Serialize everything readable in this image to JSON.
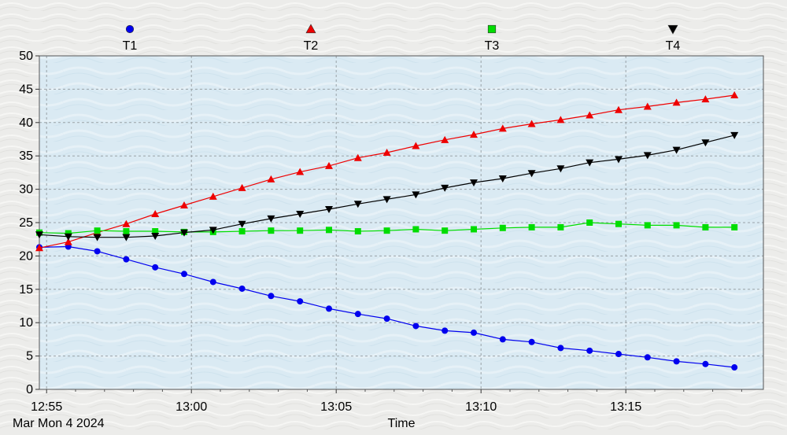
{
  "chart_data": {
    "type": "line",
    "title": "",
    "xlabel": "Time",
    "ylabel": "",
    "date_label": "Mar Mon 4 2024",
    "x_ticks": [
      "12:55",
      "13:00",
      "13:05",
      "13:10",
      "13:15"
    ],
    "x_tick_minutes": [
      0,
      5,
      10,
      15,
      20
    ],
    "y_ticks": [
      0,
      5,
      10,
      15,
      20,
      25,
      30,
      35,
      40,
      45,
      50
    ],
    "ylim": [
      0,
      50
    ],
    "xlim_minutes": [
      -0.25,
      24.75
    ],
    "x_minutes": [
      -0.25,
      0.75,
      1.75,
      2.75,
      3.75,
      4.75,
      5.75,
      6.75,
      7.75,
      8.75,
      9.75,
      10.75,
      11.75,
      12.75,
      13.75,
      14.75,
      15.75,
      16.75,
      17.75,
      18.75,
      19.75,
      20.75,
      21.75,
      22.75,
      23.75
    ],
    "grid": true,
    "legend_position": "top",
    "series": [
      {
        "name": "T1",
        "color": "#0000ee",
        "marker": "circle",
        "values": [
          21.3,
          21.4,
          20.7,
          19.5,
          18.3,
          17.3,
          16.1,
          15.1,
          14.0,
          13.2,
          12.1,
          11.3,
          10.6,
          9.5,
          8.8,
          8.5,
          7.5,
          7.1,
          6.2,
          5.8,
          5.3,
          4.8,
          4.2,
          3.8,
          3.3
        ]
      },
      {
        "name": "T2",
        "color": "#ee0000",
        "marker": "triangle-up",
        "values": [
          21.2,
          22.1,
          23.5,
          24.8,
          26.3,
          27.6,
          28.9,
          30.2,
          31.5,
          32.6,
          33.5,
          34.7,
          35.5,
          36.5,
          37.4,
          38.2,
          39.1,
          39.8,
          40.4,
          41.1,
          41.9,
          42.4,
          43.0,
          43.5,
          44.1
        ]
      },
      {
        "name": "T3",
        "color": "#00dd00",
        "marker": "square",
        "values": [
          23.5,
          23.4,
          23.8,
          23.7,
          23.7,
          23.6,
          23.6,
          23.7,
          23.8,
          23.8,
          23.9,
          23.7,
          23.8,
          24.0,
          23.8,
          24.0,
          24.2,
          24.3,
          24.3,
          25.0,
          24.8,
          24.6,
          24.6,
          24.3,
          24.3
        ]
      },
      {
        "name": "T4",
        "color": "#000000",
        "marker": "triangle-down",
        "values": [
          23.2,
          22.9,
          22.8,
          22.8,
          23.0,
          23.5,
          23.9,
          24.8,
          25.6,
          26.3,
          27.0,
          27.8,
          28.5,
          29.2,
          30.2,
          31.0,
          31.6,
          32.4,
          33.1,
          34.0,
          34.5,
          35.1,
          35.9,
          37.0,
          38.1
        ]
      }
    ]
  }
}
